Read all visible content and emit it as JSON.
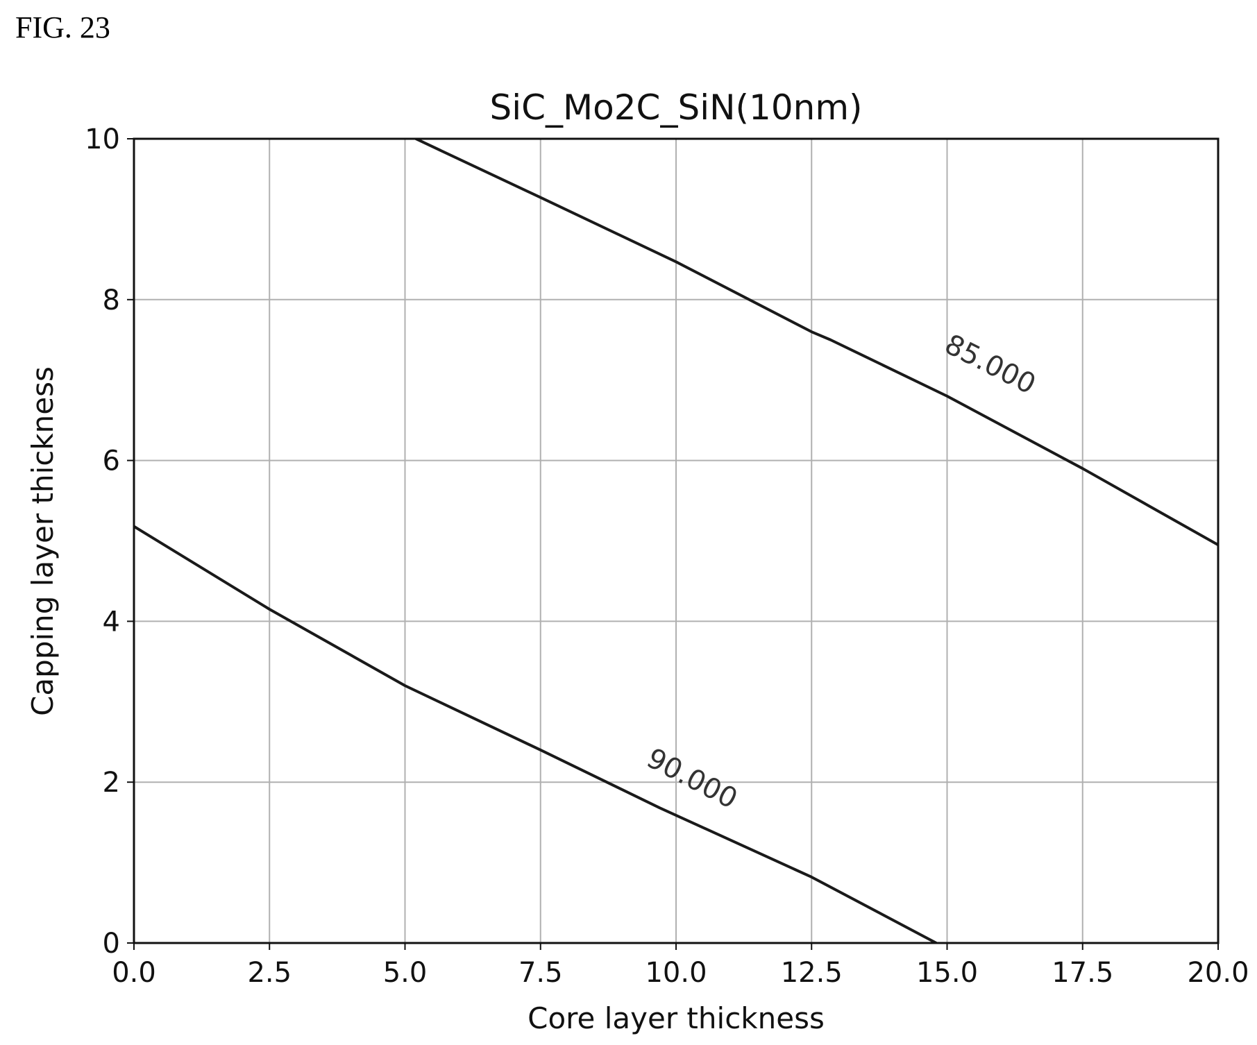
{
  "figure_label": "FIG. 23",
  "chart_data": {
    "type": "contour",
    "title": "SiC_Mo2C_SiN(10nm)",
    "xlabel": "Core layer thickness",
    "ylabel": "Capping layer thickness",
    "xlim": [
      0,
      20
    ],
    "ylim": [
      0,
      10
    ],
    "x_ticks": [
      0,
      2.5,
      5,
      7.5,
      10,
      12.5,
      15,
      17.5,
      20
    ],
    "x_tick_labels": [
      "0.0",
      "2.5",
      "5.0",
      "7.5",
      "10.0",
      "12.5",
      "15.0",
      "17.5",
      "20.0"
    ],
    "y_ticks": [
      0,
      2,
      4,
      6,
      8,
      10
    ],
    "y_tick_labels": [
      "0",
      "2",
      "4",
      "6",
      "8",
      "10"
    ],
    "grid": true,
    "contours": [
      {
        "level_label": "85.000",
        "label_at": {
          "x": 15.8,
          "y": 7.2
        },
        "points": [
          {
            "x": 5.2,
            "y": 10.0
          },
          {
            "x": 7.5,
            "y": 9.27
          },
          {
            "x": 10.0,
            "y": 8.47
          },
          {
            "x": 12.5,
            "y": 7.6
          },
          {
            "x": 12.85,
            "y": 7.5
          },
          {
            "x": 15.0,
            "y": 6.8
          },
          {
            "x": 17.5,
            "y": 5.9
          },
          {
            "x": 20.0,
            "y": 4.95
          }
        ]
      },
      {
        "level_label": "90.000",
        "label_at": {
          "x": 10.3,
          "y": 2.05
        },
        "points": [
          {
            "x": 0.0,
            "y": 5.18
          },
          {
            "x": 2.5,
            "y": 4.15
          },
          {
            "x": 5.0,
            "y": 3.2
          },
          {
            "x": 7.5,
            "y": 2.4
          },
          {
            "x": 9.7,
            "y": 1.68
          },
          {
            "x": 12.5,
            "y": 0.82
          },
          {
            "x": 14.8,
            "y": 0.0
          }
        ]
      }
    ]
  }
}
